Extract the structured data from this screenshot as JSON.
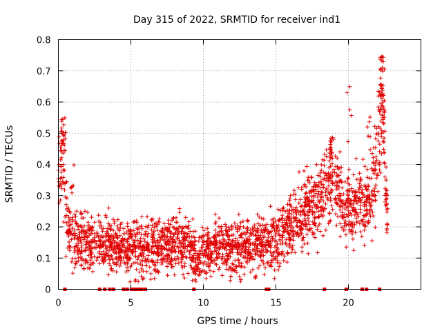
{
  "chart_data": {
    "type": "scatter",
    "title": "Day 315 of 2022, SRMTID for receiver ind1",
    "xlabel": "GPS time / hours",
    "ylabel": "SRMTID / TECUs",
    "xlim": [
      0,
      25
    ],
    "ylim": [
      0,
      0.8
    ],
    "xticks": [
      0,
      5,
      10,
      15,
      20
    ],
    "yticks": [
      0,
      0.1,
      0.2,
      0.3,
      0.4,
      0.5,
      0.6,
      0.7,
      0.8
    ],
    "xtick_labels": [
      "0",
      "5",
      "10",
      "15",
      "20"
    ],
    "ytick_labels": [
      "0",
      "0.1",
      "0.2",
      "0.3",
      "0.4",
      "0.5",
      "0.6",
      "0.7",
      "0.8"
    ],
    "grid": true,
    "series_color": "#e00000",
    "trend": [
      [
        0.0,
        0.34
      ],
      [
        0.3,
        0.45
      ],
      [
        0.6,
        0.2
      ],
      [
        1.0,
        0.17
      ],
      [
        2.0,
        0.15
      ],
      [
        3.0,
        0.15
      ],
      [
        4.0,
        0.14
      ],
      [
        5.0,
        0.13
      ],
      [
        6.0,
        0.13
      ],
      [
        7.0,
        0.14
      ],
      [
        8.0,
        0.15
      ],
      [
        9.0,
        0.14
      ],
      [
        9.5,
        0.1
      ],
      [
        10.0,
        0.11
      ],
      [
        11.0,
        0.13
      ],
      [
        12.0,
        0.13
      ],
      [
        13.0,
        0.14
      ],
      [
        14.0,
        0.15
      ],
      [
        15.0,
        0.16
      ],
      [
        16.0,
        0.2
      ],
      [
        17.0,
        0.25
      ],
      [
        18.0,
        0.28
      ],
      [
        18.8,
        0.35
      ],
      [
        19.5,
        0.28
      ],
      [
        20.0,
        0.26
      ],
      [
        21.0,
        0.28
      ],
      [
        21.8,
        0.33
      ],
      [
        22.3,
        0.6
      ],
      [
        22.7,
        0.22
      ]
    ],
    "spikes": [
      {
        "x": 0.35,
        "ymin": 0.4,
        "ymax": 0.55,
        "n": 14
      },
      {
        "x": 1.0,
        "ymin": 0.3,
        "ymax": 0.4,
        "n": 6
      },
      {
        "x": 18.9,
        "ymin": 0.4,
        "ymax": 0.5,
        "n": 8
      },
      {
        "x": 20.05,
        "ymin": 0.45,
        "ymax": 0.68,
        "n": 5
      },
      {
        "x": 21.4,
        "ymin": 0.42,
        "ymax": 0.56,
        "n": 6
      },
      {
        "x": 22.35,
        "ymin": 0.55,
        "ymax": 0.75,
        "n": 22
      }
    ],
    "baseline_markers_x": [
      0.45,
      2.85,
      3.2,
      3.55,
      3.8,
      4.5,
      4.75,
      5.05,
      5.2,
      5.35,
      5.5,
      5.6,
      5.75,
      6.0,
      9.35,
      14.35,
      14.5,
      18.35,
      19.85,
      20.95,
      21.25,
      22.15
    ],
    "point_count": 2400
  }
}
